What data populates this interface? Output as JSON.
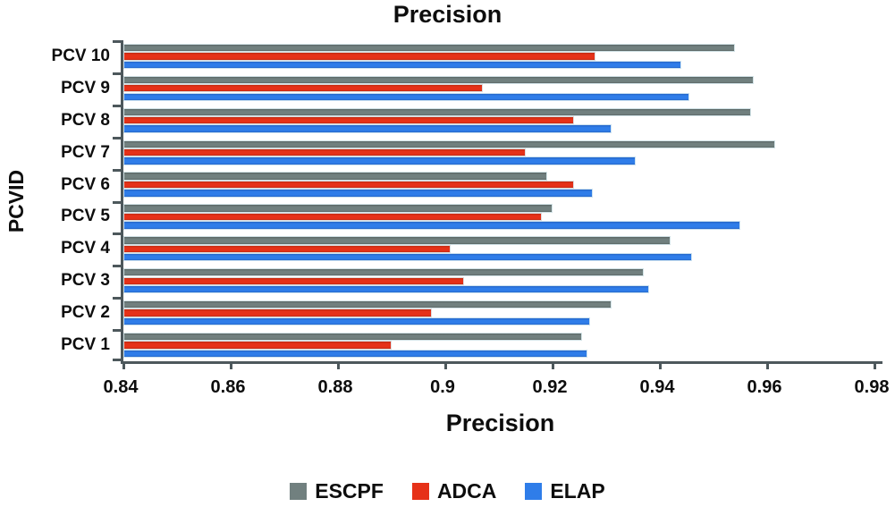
{
  "chart": {
    "title": "Precision",
    "xlabel": "Precision",
    "ylabel": "PCVID"
  },
  "chart_data": {
    "type": "bar",
    "orientation": "horizontal",
    "title": "Precision",
    "xlabel": "Precision",
    "ylabel": "PCVID",
    "xlim": [
      0.84,
      0.98
    ],
    "xtick_labels": [
      "0.84",
      "0.86",
      "0.88",
      "0.9",
      "0.92",
      "0.94",
      "0.96",
      "0.98"
    ],
    "xticks": [
      0.84,
      0.86,
      0.88,
      0.9,
      0.92,
      0.94,
      0.96,
      0.98
    ],
    "grid": false,
    "legend_position": "bottom",
    "categories": [
      "PCV 10",
      "PCV 9",
      "PCV 8",
      "PCV 7",
      "PCV 6",
      "PCV 5",
      "PCV 4",
      "PCV 3",
      "PCV 2",
      "PCV 1"
    ],
    "series": [
      {
        "name": "ESCPF",
        "color": "#71807f",
        "color_dark": "#5a6665",
        "values": [
          0.954,
          0.9575,
          0.957,
          0.9615,
          0.919,
          0.92,
          0.942,
          0.937,
          0.931,
          0.9255
        ]
      },
      {
        "name": "ADCA",
        "color": "#e63118",
        "color_dark": "#c02a12",
        "values": [
          0.928,
          0.907,
          0.924,
          0.915,
          0.924,
          0.918,
          0.901,
          0.9035,
          0.8975,
          0.89
        ]
      },
      {
        "name": "ELAP",
        "color": "#2f7de9",
        "color_dark": "#2565c6",
        "values": [
          0.944,
          0.9455,
          0.931,
          0.9355,
          0.9275,
          0.955,
          0.946,
          0.938,
          0.927,
          0.9265
        ]
      }
    ]
  }
}
